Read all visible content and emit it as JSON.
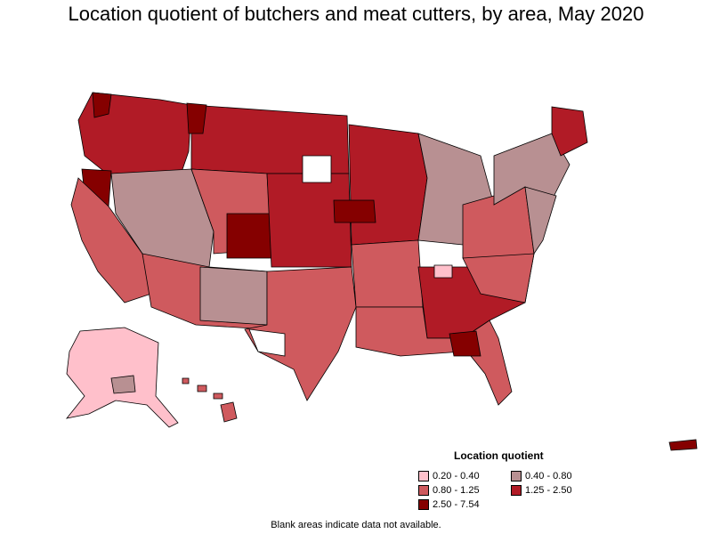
{
  "title": "Location quotient of butchers and meat cutters, by area, May 2020",
  "legend": {
    "title": "Location quotient",
    "items": [
      {
        "label": "0.20 - 0.40",
        "color": "#ffc0cb"
      },
      {
        "label": "0.40 - 0.80",
        "color": "#b89092"
      },
      {
        "label": "0.80 - 1.25",
        "color": "#cf5a5e"
      },
      {
        "label": "1.25 - 2.50",
        "color": "#b11b26"
      },
      {
        "label": "2.50 - 7.54",
        "color": "#850000"
      }
    ]
  },
  "footnote": "Blank areas indicate data not available.",
  "colors": {
    "blank": "#ffffff",
    "border": "#000000"
  }
}
